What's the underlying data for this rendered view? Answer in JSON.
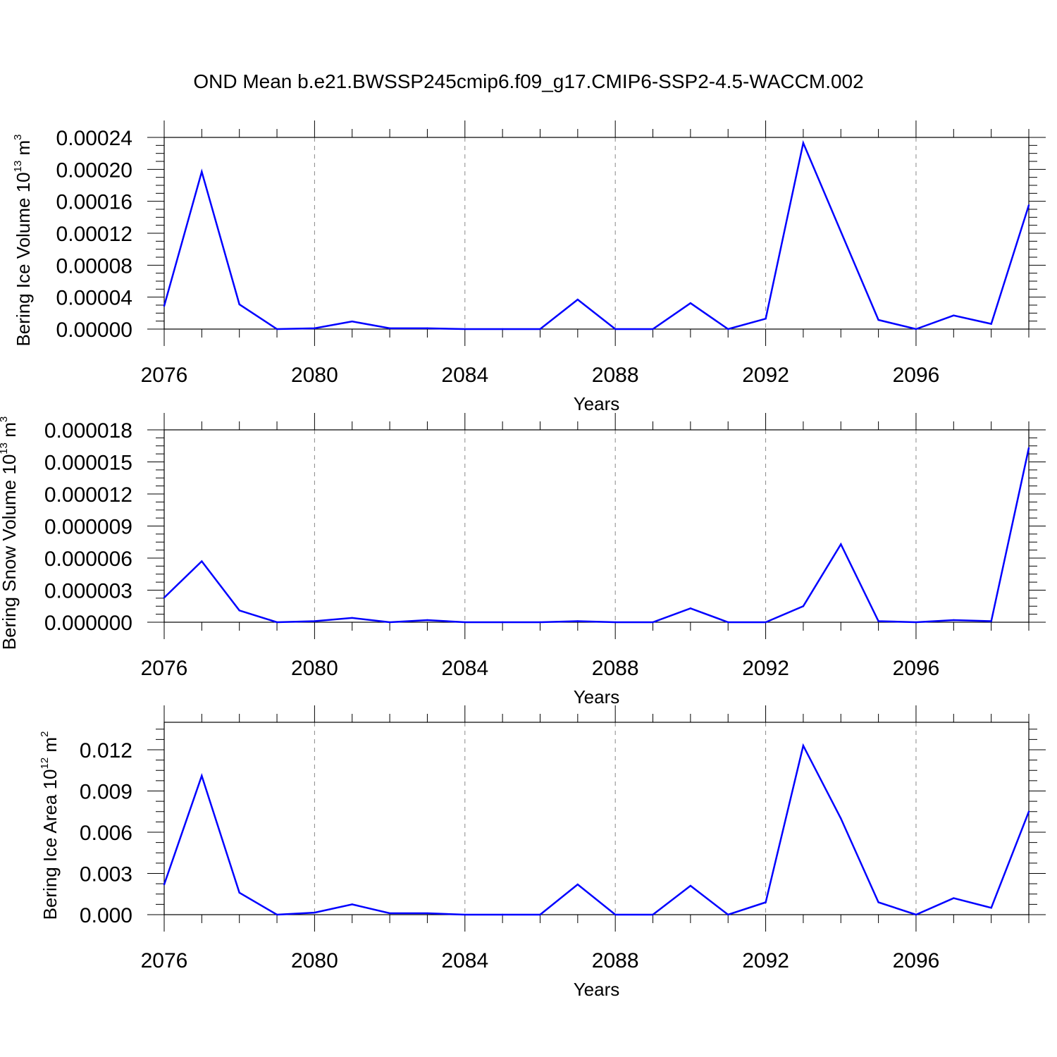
{
  "title": "OND Mean b.e21.BWSSP245cmip6.f09_g17.CMIP6-SSP2-4.5-WACCM.002",
  "colors": {
    "line": "#0000ff",
    "axis": "#000000",
    "grid": "#888888"
  },
  "chart_data": [
    {
      "type": "line",
      "xlabel": "Years",
      "ylabel": {
        "text": "Bering Ice Volume 10",
        "exp": "13",
        "unit": " m",
        "unit_exp": "3"
      },
      "xlim": [
        2076,
        2099
      ],
      "ylim": [
        0,
        0.00024
      ],
      "xticks": [
        2076,
        2080,
        2084,
        2088,
        2092,
        2096
      ],
      "yticks": [
        "0.00000",
        "0.00004",
        "0.00008",
        "0.00012",
        "0.00016",
        "0.00020",
        "0.00024"
      ],
      "x": [
        2076,
        2077,
        2078,
        2079,
        2080,
        2081,
        2082,
        2083,
        2084,
        2085,
        2086,
        2087,
        2088,
        2089,
        2090,
        2091,
        2092,
        2093,
        2094,
        2095,
        2096,
        2097,
        2098,
        2099
      ],
      "values": [
        2.9e-05,
        0.000197,
        3.1e-05,
        0.0,
        1e-06,
        9.5e-06,
        1e-06,
        1e-06,
        0.0,
        0.0,
        0.0,
        3.7e-05,
        0.0,
        0.0,
        3.25e-05,
        0.0,
        1.3e-05,
        0.000233,
        0.000122,
        1.15e-05,
        0.0,
        1.7e-05,
        6.5e-06,
        0.000155
      ]
    },
    {
      "type": "line",
      "xlabel": "Years",
      "ylabel": {
        "text": "Bering Snow Volume 10",
        "exp": "13",
        "unit": " m",
        "unit_exp": "3"
      },
      "xlim": [
        2076,
        2099
      ],
      "ylim": [
        0,
        1.8e-05
      ],
      "xticks": [
        2076,
        2080,
        2084,
        2088,
        2092,
        2096
      ],
      "yticks": [
        "0.000000",
        "0.000003",
        "0.000006",
        "0.000009",
        "0.000012",
        "0.000015",
        "0.000018"
      ],
      "x": [
        2076,
        2077,
        2078,
        2079,
        2080,
        2081,
        2082,
        2083,
        2084,
        2085,
        2086,
        2087,
        2088,
        2089,
        2090,
        2091,
        2092,
        2093,
        2094,
        2095,
        2096,
        2097,
        2098,
        2099
      ],
      "values": [
        2.3e-06,
        5.7e-06,
        1.1e-06,
        0.0,
        1e-07,
        4e-07,
        0.0,
        2e-07,
        0.0,
        0.0,
        0.0,
        1e-07,
        0.0,
        0.0,
        1.3e-06,
        0.0,
        0.0,
        1.5e-06,
        7.3e-06,
        1e-07,
        0.0,
        2e-07,
        1e-07,
        1.63e-05
      ]
    },
    {
      "type": "line",
      "xlabel": "Years",
      "ylabel": {
        "text": "Bering Ice Area 10",
        "exp": "12",
        "unit": " m",
        "unit_exp": "2"
      },
      "xlim": [
        2076,
        2099
      ],
      "ylim": [
        0,
        0.014
      ],
      "xticks": [
        2076,
        2080,
        2084,
        2088,
        2092,
        2096
      ],
      "yticks": [
        "0.000",
        "0.003",
        "0.006",
        "0.009",
        "0.012"
      ],
      "x": [
        2076,
        2077,
        2078,
        2079,
        2080,
        2081,
        2082,
        2083,
        2084,
        2085,
        2086,
        2087,
        2088,
        2089,
        2090,
        2091,
        2092,
        2093,
        2094,
        2095,
        2096,
        2097,
        2098,
        2099
      ],
      "values": [
        0.0022,
        0.0101,
        0.0016,
        0.0,
        0.00015,
        0.00075,
        0.0001,
        0.0001,
        0.0,
        0.0,
        0.0,
        0.0022,
        0.0,
        0.0,
        0.0021,
        0.0,
        0.0009,
        0.0123,
        0.007,
        0.0009,
        0.0,
        0.0012,
        0.0005,
        0.0075
      ]
    }
  ]
}
